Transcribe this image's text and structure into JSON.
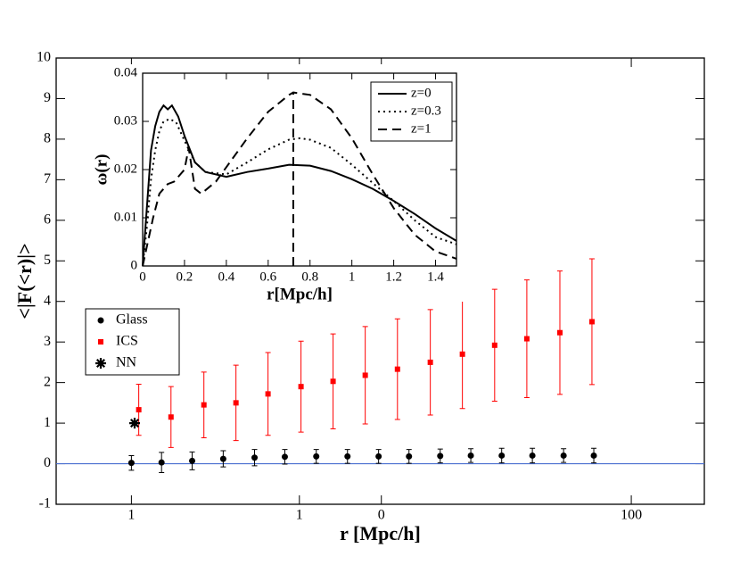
{
  "chart_data": [
    {
      "type": "scatter",
      "x_label": "r [Mpc/h]",
      "y_label": "<|F(<r)|>",
      "xlog": true,
      "xlim": [
        0.5,
        196
      ],
      "ylim": [
        -1,
        10
      ],
      "xticks": [
        {
          "value": 1,
          "label": "1"
        },
        {
          "value": 4.7,
          "label": "1"
        },
        {
          "value": 10,
          "label": "0"
        },
        100
      ],
      "yticks": [
        -1,
        0,
        1,
        2,
        3,
        4,
        5,
        6,
        7,
        8,
        9,
        10
      ],
      "hline": 0,
      "hline_color": "#4a6fd0",
      "legend": "center left",
      "series": [
        {
          "name": "Glass",
          "color": "#000000",
          "marker": "circle",
          "x": [
            1,
            1.32,
            1.75,
            2.33,
            3.11,
            4.11,
            5.49,
            7.32,
            9.75,
            12.9,
            17.2,
            22.8,
            30.3,
            40.2,
            53.6,
            70.8
          ],
          "values": [
            0.02,
            0.03,
            0.07,
            0.12,
            0.15,
            0.17,
            0.18,
            0.18,
            0.18,
            0.18,
            0.19,
            0.2,
            0.2,
            0.2,
            0.2,
            0.2
          ],
          "errors": [
            0.18,
            0.25,
            0.22,
            0.2,
            0.2,
            0.18,
            0.17,
            0.17,
            0.17,
            0.17,
            0.17,
            0.17,
            0.18,
            0.18,
            0.17,
            0.18
          ]
        },
        {
          "name": "ICS",
          "color": "#ff0000",
          "marker": "square",
          "x": [
            1.07,
            1.44,
            1.95,
            2.62,
            3.52,
            4.77,
            6.41,
            8.62,
            11.6,
            15.7,
            21.1,
            28.4,
            38.2,
            51.8,
            69.6
          ],
          "values": [
            1.33,
            1.15,
            1.45,
            1.5,
            1.72,
            1.9,
            2.03,
            2.18,
            2.33,
            2.5,
            2.7,
            2.92,
            3.08,
            3.23,
            3.5
          ],
          "errors": [
            0.63,
            0.75,
            0.81,
            0.93,
            1.02,
            1.12,
            1.17,
            1.2,
            1.24,
            1.3,
            1.34,
            1.38,
            1.45,
            1.52,
            1.55
          ]
        },
        {
          "name": "NN",
          "color": "#000000",
          "marker": "star",
          "x": [
            1.03
          ],
          "values": [
            1
          ]
        }
      ]
    },
    {
      "type": "line",
      "x_label": "r[Mpc/h]",
      "y_label": "ω(r)",
      "xlim": [
        0,
        1.5
      ],
      "ylim": [
        0,
        0.04
      ],
      "xticks": [
        0,
        0.2,
        0.4,
        0.6,
        0.8,
        1,
        1.2,
        1.4
      ],
      "yticks": [
        0,
        0.01,
        0.02,
        0.03,
        0.04
      ],
      "vline": 0.72,
      "vline_top": 0.036,
      "legend": "upper right",
      "series": [
        {
          "name": "z=0",
          "color": "#000000",
          "style": "solid",
          "x": [
            0,
            0.02,
            0.04,
            0.06,
            0.08,
            0.1,
            0.12,
            0.14,
            0.17,
            0.2,
            0.25,
            0.3,
            0.4,
            0.5,
            0.6,
            0.7,
            0.8,
            0.9,
            1.0,
            1.1,
            1.2,
            1.3,
            1.4,
            1.5
          ],
          "values": [
            0,
            0.012,
            0.024,
            0.029,
            0.032,
            0.0333,
            0.0325,
            0.0333,
            0.031,
            0.027,
            0.0215,
            0.0195,
            0.0185,
            0.0195,
            0.0202,
            0.021,
            0.0208,
            0.0197,
            0.018,
            0.016,
            0.0135,
            0.0108,
            0.0078,
            0.0052
          ]
        },
        {
          "name": "z=0.3",
          "color": "#000000",
          "style": "dotted",
          "x": [
            0,
            0.02,
            0.04,
            0.06,
            0.08,
            0.1,
            0.13,
            0.16,
            0.2,
            0.25,
            0.3,
            0.4,
            0.5,
            0.6,
            0.7,
            0.75,
            0.8,
            0.9,
            1.0,
            1.1,
            1.2,
            1.3,
            1.4,
            1.5
          ],
          "values": [
            0,
            0.008,
            0.018,
            0.024,
            0.028,
            0.03,
            0.0305,
            0.0298,
            0.026,
            0.0215,
            0.0195,
            0.019,
            0.0215,
            0.0242,
            0.0262,
            0.0265,
            0.0262,
            0.0245,
            0.021,
            0.0172,
            0.0135,
            0.0095,
            0.006,
            0.0045
          ]
        },
        {
          "name": "z=1",
          "color": "#000000",
          "style": "dashed",
          "x": [
            0,
            0.02,
            0.05,
            0.08,
            0.12,
            0.15,
            0.2,
            0.22,
            0.25,
            0.28,
            0.35,
            0.4,
            0.5,
            0.6,
            0.7,
            0.72,
            0.8,
            0.9,
            1.0,
            1.1,
            1.2,
            1.3,
            1.4,
            1.5
          ],
          "values": [
            0,
            0.004,
            0.01,
            0.015,
            0.017,
            0.0175,
            0.02,
            0.0245,
            0.016,
            0.015,
            0.0175,
            0.0205,
            0.0265,
            0.032,
            0.0355,
            0.036,
            0.0355,
            0.0325,
            0.0265,
            0.019,
            0.012,
            0.0065,
            0.003,
            0.0015
          ]
        }
      ]
    }
  ]
}
